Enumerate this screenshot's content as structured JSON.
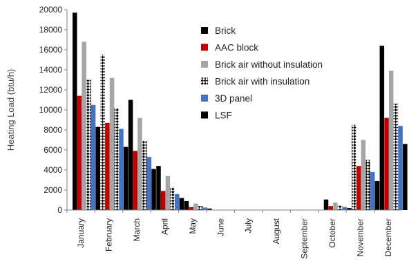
{
  "chart_data": {
    "type": "bar",
    "title": "",
    "xlabel": "",
    "ylabel": "Heating Load (btu/h)",
    "ylim": [
      0,
      20000
    ],
    "yticks": [
      0,
      2000,
      4000,
      6000,
      8000,
      10000,
      12000,
      14000,
      16000,
      18000,
      20000
    ],
    "categories": [
      "January",
      "February",
      "March",
      "April",
      "May",
      "June",
      "July",
      "August",
      "September",
      "October",
      "November",
      "December"
    ],
    "legend_position": "top-right",
    "grid": false,
    "series": [
      {
        "name": "Brick",
        "color": "#000000",
        "pattern": "solid",
        "values": [
          19700,
          0,
          11000,
          4400,
          900,
          0,
          0,
          0,
          0,
          1050,
          0,
          16400
        ]
      },
      {
        "name": "AAC block",
        "color": "#c00000",
        "pattern": "solid",
        "values": [
          11400,
          8700,
          5900,
          1900,
          300,
          0,
          0,
          0,
          0,
          400,
          4400,
          9200
        ]
      },
      {
        "name": "Brick air without insulation",
        "color": "#a6a6a6",
        "pattern": "solid",
        "values": [
          16800,
          13200,
          9200,
          3400,
          650,
          0,
          0,
          0,
          0,
          750,
          7000,
          13900
        ]
      },
      {
        "name": "Brick air with insulation",
        "color": "#000000",
        "pattern": "checker",
        "values": [
          13000,
          10200,
          6900,
          2300,
          400,
          0,
          0,
          0,
          0,
          450,
          5000,
          10600
        ]
      },
      {
        "name": "3D panel",
        "color": "#4472c4",
        "pattern": "solid",
        "values": [
          10500,
          8100,
          5300,
          1600,
          250,
          0,
          0,
          0,
          0,
          300,
          3800,
          8400
        ]
      },
      {
        "name": "LSF",
        "color": "#000000",
        "pattern": "solid",
        "values": [
          8300,
          6300,
          4100,
          1200,
          150,
          0,
          0,
          0,
          0,
          200,
          2900,
          6600
        ]
      },
      {
        "name": "",
        "color": "#000000",
        "pattern": "checker",
        "values": [
          0,
          15500,
          0,
          0,
          0,
          0,
          0,
          0,
          0,
          0,
          8500,
          0
        ]
      }
    ]
  }
}
